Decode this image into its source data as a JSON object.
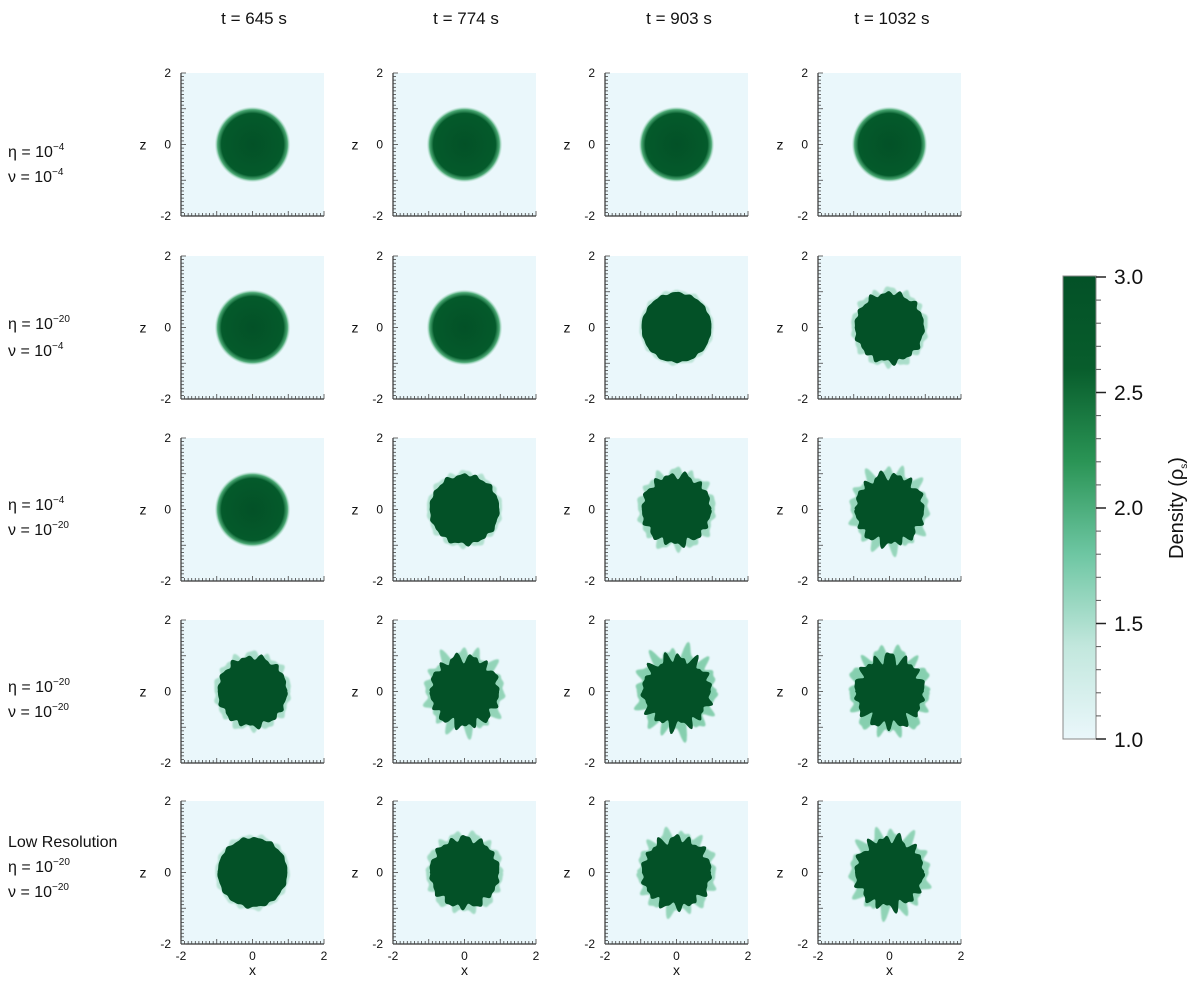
{
  "chart_data": {
    "type": "heatmap",
    "columns": [
      "t = 645 s",
      "t = 774 s",
      "t = 903 s",
      "t = 1032 s"
    ],
    "rows": [
      {
        "eta_line": [
          "η = 10",
          "−4"
        ],
        "nu_line": [
          "ν = 10",
          "−4"
        ]
      },
      {
        "eta_line": [
          "η = 10",
          "−20"
        ],
        "nu_line": [
          "ν = 10",
          "−4"
        ]
      },
      {
        "eta_line": [
          "η = 10",
          "−4"
        ],
        "nu_line": [
          "ν = 10",
          "−20"
        ]
      },
      {
        "eta_line": [
          "η = 10",
          "−20"
        ],
        "nu_line": [
          "ν = 10",
          "−20"
        ]
      },
      {
        "title_line": "Low Resolution",
        "eta_line": [
          "η = 10",
          "−20"
        ],
        "nu_line": [
          "ν = 10",
          "−20"
        ]
      }
    ],
    "instability_level": [
      [
        0,
        0,
        0,
        0
      ],
      [
        0,
        0,
        0.15,
        0.45
      ],
      [
        0,
        0.3,
        0.6,
        0.75
      ],
      [
        0.45,
        0.8,
        1.0,
        1.0
      ],
      [
        0.2,
        0.55,
        0.75,
        0.85
      ]
    ],
    "xlabel": "x",
    "ylabel": "z",
    "xlim": [
      -2,
      2
    ],
    "ylim": [
      -2,
      2
    ],
    "xticks": [
      "-2",
      "0",
      "2"
    ],
    "yticks": [
      "2",
      "0",
      "-2"
    ],
    "clump_radius": 1,
    "colorbar": {
      "label": "Density (ρ",
      "label_sub": "s",
      "label_end": ")",
      "min": 1.0,
      "max": 3.0,
      "ticks": [
        "3.0",
        "2.5",
        "2.0",
        "1.5",
        "1.0"
      ],
      "colors": [
        "#eaf7fb",
        "#c2e7dd",
        "#6dc6a2",
        "#2a9455",
        "#085d2c",
        "#035127"
      ]
    }
  }
}
